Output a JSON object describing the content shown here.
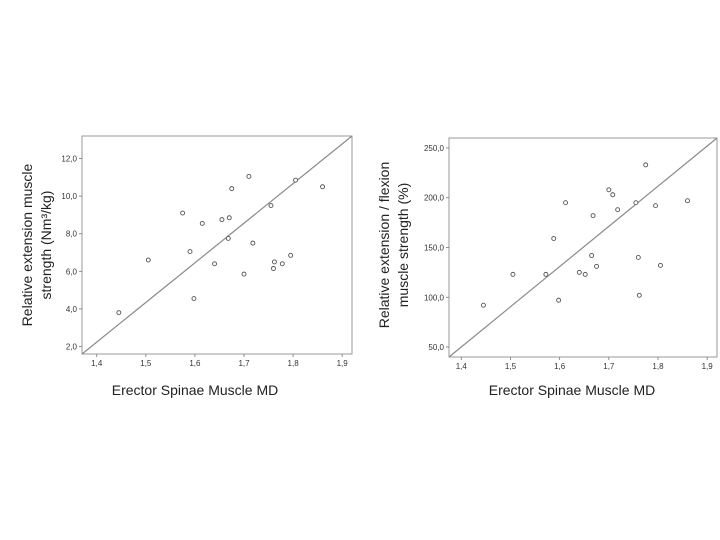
{
  "chart_data": [
    {
      "type": "scatter",
      "xlabel": "Erector Spinae Muscle MD",
      "ylabel": [
        "Relative extension muscle",
        "strength (Nm³/kg)"
      ],
      "xlim": [
        1.37,
        1.92
      ],
      "ylim": [
        1.6,
        13.2
      ],
      "xticks": [
        "1,4",
        "1,5",
        "1,6",
        "1,7",
        "1,8",
        "1,9"
      ],
      "xtick_values": [
        1.4,
        1.5,
        1.6,
        1.7,
        1.8,
        1.9
      ],
      "yticks": [
        "2,0",
        "4,0",
        "6,0",
        "8,0",
        "10,0",
        "12,0"
      ],
      "ytick_values": [
        2,
        4,
        6,
        8,
        10,
        12
      ],
      "fit_line": [
        [
          1.37,
          1.6
        ],
        [
          1.92,
          13.2
        ]
      ],
      "points": [
        {
          "x": 1.445,
          "y": 3.8
        },
        {
          "x": 1.505,
          "y": 6.6
        },
        {
          "x": 1.575,
          "y": 9.1
        },
        {
          "x": 1.59,
          "y": 7.05
        },
        {
          "x": 1.598,
          "y": 4.55
        },
        {
          "x": 1.615,
          "y": 8.55
        },
        {
          "x": 1.64,
          "y": 6.4
        },
        {
          "x": 1.655,
          "y": 8.75
        },
        {
          "x": 1.668,
          "y": 7.75
        },
        {
          "x": 1.67,
          "y": 8.85
        },
        {
          "x": 1.675,
          "y": 10.4
        },
        {
          "x": 1.7,
          "y": 5.85
        },
        {
          "x": 1.71,
          "y": 11.05
        },
        {
          "x": 1.718,
          "y": 7.5
        },
        {
          "x": 1.755,
          "y": 9.5
        },
        {
          "x": 1.76,
          "y": 6.15
        },
        {
          "x": 1.762,
          "y": 6.5
        },
        {
          "x": 1.778,
          "y": 6.4
        },
        {
          "x": 1.795,
          "y": 6.85
        },
        {
          "x": 1.805,
          "y": 10.85
        },
        {
          "x": 1.86,
          "y": 10.5
        }
      ],
      "grid": false
    },
    {
      "type": "scatter",
      "xlabel": "Erector Spinae Muscle MD",
      "ylabel": [
        "Relative extension / flexion",
        "muscle strength (%)"
      ],
      "xlim": [
        1.375,
        1.92
      ],
      "ylim": [
        40,
        260
      ],
      "xticks": [
        "1,4",
        "1,5",
        "1,6",
        "1,7",
        "1,8",
        "1,9"
      ],
      "xtick_values": [
        1.4,
        1.5,
        1.6,
        1.7,
        1.8,
        1.9
      ],
      "yticks": [
        "50,0",
        "100,0",
        "150,0",
        "200,0",
        "250,0"
      ],
      "ytick_values": [
        50,
        100,
        150,
        200,
        250
      ],
      "fit_line": [
        [
          1.375,
          40
        ],
        [
          1.92,
          260
        ]
      ],
      "points": [
        {
          "x": 1.445,
          "y": 92
        },
        {
          "x": 1.505,
          "y": 123
        },
        {
          "x": 1.572,
          "y": 123
        },
        {
          "x": 1.588,
          "y": 159
        },
        {
          "x": 1.598,
          "y": 97
        },
        {
          "x": 1.612,
          "y": 195
        },
        {
          "x": 1.64,
          "y": 125
        },
        {
          "x": 1.652,
          "y": 123
        },
        {
          "x": 1.665,
          "y": 142
        },
        {
          "x": 1.668,
          "y": 182
        },
        {
          "x": 1.675,
          "y": 131
        },
        {
          "x": 1.7,
          "y": 208
        },
        {
          "x": 1.708,
          "y": 203
        },
        {
          "x": 1.718,
          "y": 188
        },
        {
          "x": 1.755,
          "y": 195
        },
        {
          "x": 1.76,
          "y": 140
        },
        {
          "x": 1.762,
          "y": 102
        },
        {
          "x": 1.775,
          "y": 233
        },
        {
          "x": 1.795,
          "y": 192
        },
        {
          "x": 1.805,
          "y": 132
        },
        {
          "x": 1.86,
          "y": 197
        }
      ],
      "grid": false
    }
  ]
}
